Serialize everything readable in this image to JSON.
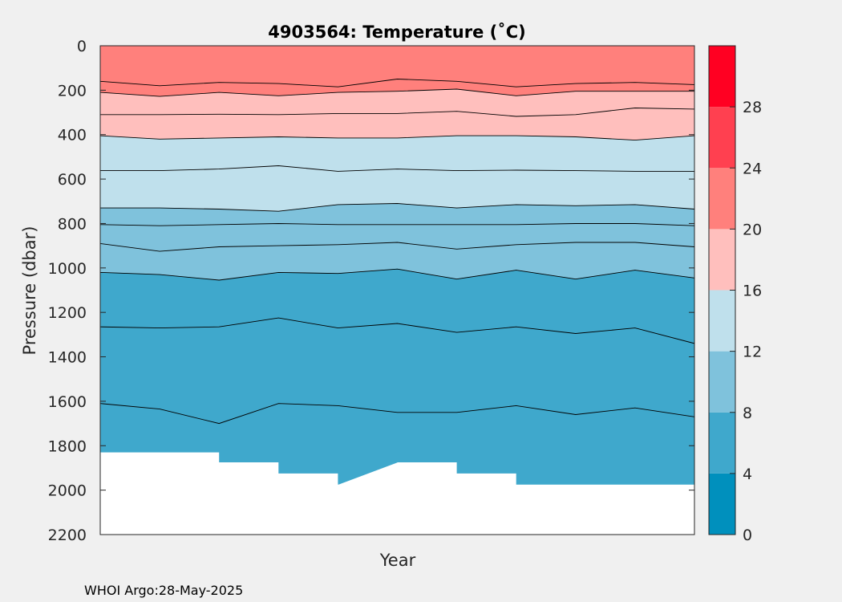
{
  "chart_data": {
    "type": "heatmap",
    "subtype": "filled-contour",
    "title": "4903564:  Temperature (˚C)",
    "xlabel": "Year",
    "ylabel": "Pressure (dbar)",
    "footer": "WHOI Argo:28-May-2025",
    "y_axis": {
      "range": [
        0,
        2200
      ],
      "reversed": true,
      "ticks": [
        0,
        200,
        400,
        600,
        800,
        1000,
        1200,
        1400,
        1600,
        1800,
        2000,
        2200
      ]
    },
    "x_axis": {
      "ticks": []
    },
    "colorbar": {
      "range": [
        0,
        32
      ],
      "tick_labels": [
        "0",
        "4",
        "8",
        "12",
        "16",
        "20",
        "24",
        "28"
      ],
      "bands": [
        {
          "min": 0,
          "max": 4,
          "color": "#0090bd"
        },
        {
          "min": 4,
          "max": 8,
          "color": "#3fa8cc"
        },
        {
          "min": 8,
          "max": 12,
          "color": "#7fc2dc"
        },
        {
          "min": 12,
          "max": 16,
          "color": "#bfe0ec"
        },
        {
          "min": 16,
          "max": 20,
          "color": "#ffbfbd"
        },
        {
          "min": 20,
          "max": 24,
          "color": "#ff807c"
        },
        {
          "min": 24,
          "max": 28,
          "color": "#ff4050"
        },
        {
          "min": 28,
          "max": 32,
          "color": "#ff0022"
        }
      ]
    },
    "profile_index": [
      0,
      1,
      2,
      3,
      4,
      5,
      6,
      7,
      8,
      9,
      10
    ],
    "max_profile_depth": [
      1830,
      1830,
      1875,
      1925,
      1975,
      1875,
      1925,
      1975,
      1975,
      1975,
      1975
    ],
    "contours": [
      {
        "level": 22,
        "depths": [
          160,
          180,
          165,
          170,
          185,
          150,
          160,
          185,
          170,
          165,
          175
        ]
      },
      {
        "level": 20,
        "depths": [
          210,
          228,
          210,
          225,
          210,
          205,
          195,
          225,
          205,
          205,
          205
        ]
      },
      {
        "level": 18,
        "depths": [
          310,
          310,
          308,
          310,
          305,
          305,
          295,
          318,
          310,
          280,
          285
        ]
      },
      {
        "level": 16,
        "depths": [
          405,
          420,
          415,
          410,
          415,
          415,
          405,
          405,
          410,
          425,
          405
        ]
      },
      {
        "level": 14,
        "depths": [
          562,
          562,
          555,
          540,
          565,
          555,
          562,
          560,
          562,
          565,
          565
        ]
      },
      {
        "level": 12,
        "depths": [
          730,
          730,
          735,
          745,
          715,
          710,
          730,
          715,
          720,
          715,
          735
        ]
      },
      {
        "level": 11,
        "depths": [
          805,
          810,
          805,
          800,
          805,
          805,
          805,
          805,
          800,
          800,
          810
        ]
      },
      {
        "level": 10,
        "depths": [
          890,
          925,
          905,
          900,
          895,
          885,
          915,
          895,
          885,
          885,
          905
        ]
      },
      {
        "level": 8,
        "depths": [
          1020,
          1030,
          1055,
          1020,
          1025,
          1005,
          1050,
          1010,
          1050,
          1010,
          1045
        ]
      },
      {
        "level": 6,
        "depths": [
          1265,
          1270,
          1265,
          1225,
          1270,
          1250,
          1290,
          1265,
          1295,
          1270,
          1340
        ]
      },
      {
        "level": 5,
        "depths": [
          1610,
          1635,
          1700,
          1610,
          1620,
          1650,
          1650,
          1620,
          1660,
          1630,
          1670
        ]
      }
    ]
  }
}
